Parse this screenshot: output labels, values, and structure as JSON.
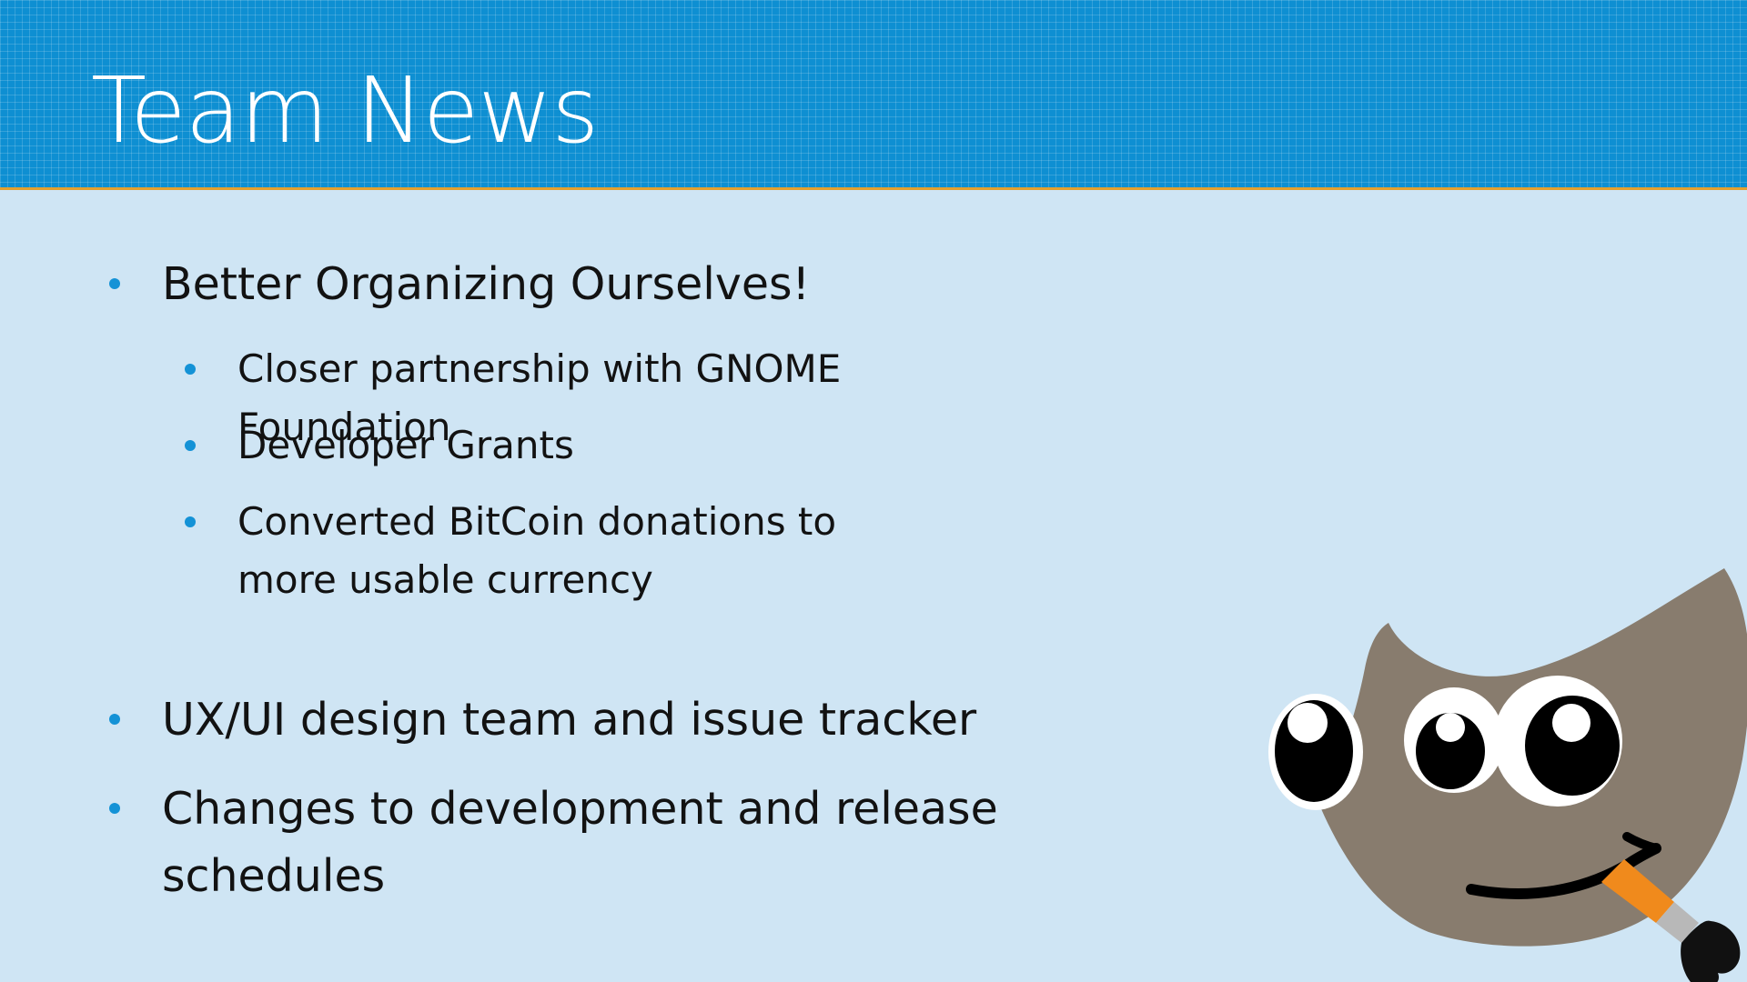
{
  "slide": {
    "title": "Team News"
  },
  "bullets": [
    {
      "level": 1,
      "text": "Better Organizing Ourselves!"
    },
    {
      "level": 2,
      "text": "Closer partnership with GNOME Foundation"
    },
    {
      "level": 2,
      "text": "Developer Grants"
    },
    {
      "level": 2,
      "text": "Converted BitCoin donations to more usable currency"
    },
    {
      "level": 1,
      "text": "UX/UI design team and issue tracker"
    },
    {
      "level": 1,
      "text": "Changes to development and release schedules"
    }
  ],
  "colors": {
    "header_blue": "#0e8fd2",
    "background": "#cfe5f4",
    "accent_line": "#e3a02f",
    "bullet_blue": "#1492d6",
    "text": "#121212"
  },
  "mascot": {
    "icon": "gimp-wilber-mascot-icon"
  }
}
